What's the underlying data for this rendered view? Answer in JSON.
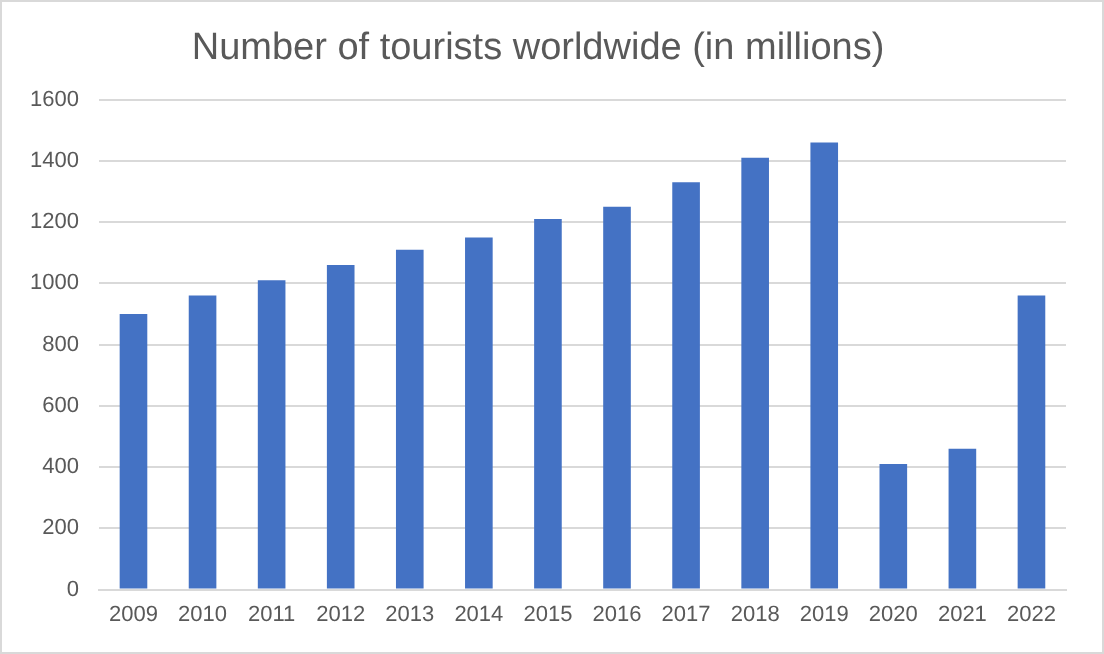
{
  "chart_data": {
    "type": "bar",
    "title": "Number of tourists worldwide (in millions)",
    "categories": [
      "2009",
      "2010",
      "2011",
      "2012",
      "2013",
      "2014",
      "2015",
      "2016",
      "2017",
      "2018",
      "2019",
      "2020",
      "2021",
      "2022"
    ],
    "values": [
      900,
      960,
      1010,
      1060,
      1110,
      1150,
      1210,
      1250,
      1330,
      1410,
      1460,
      410,
      460,
      960
    ],
    "color": "#4472c4",
    "ylim": [
      0,
      1600
    ],
    "yticks": [
      0,
      200,
      400,
      600,
      800,
      1000,
      1200,
      1400,
      1600
    ],
    "grid": "y",
    "legend": false
  }
}
